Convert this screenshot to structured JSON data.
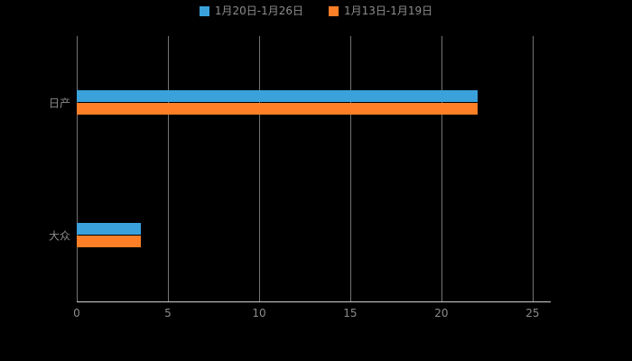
{
  "legend": {
    "items": [
      {
        "label": "1月20日-1月26日",
        "color": "#3aa1db"
      },
      {
        "label": "1月13日-1月19日",
        "color": "#ff7f27"
      }
    ]
  },
  "chart_data": {
    "type": "bar",
    "orientation": "horizontal",
    "title": "",
    "xlabel": "",
    "ylabel": "",
    "categories": [
      "日产",
      "大众"
    ],
    "series": [
      {
        "name": "1月20日-1月26日",
        "color": "#3aa1db",
        "values": [
          22,
          3.5
        ]
      },
      {
        "name": "1月13日-1月19日",
        "color": "#ff7f27",
        "values": [
          22,
          3.5
        ]
      }
    ],
    "xlim": [
      0,
      25.5
    ],
    "xticks": [
      0,
      5,
      10,
      15,
      20,
      25
    ],
    "grid": true,
    "legend_position": "top",
    "background": "#000000",
    "text_color": "#8c8c8c"
  }
}
